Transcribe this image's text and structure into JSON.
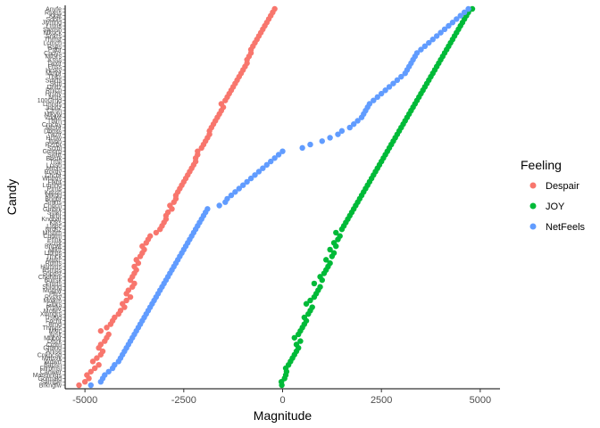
{
  "chart_data": {
    "type": "scatter",
    "xlabel": "Magnitude",
    "ylabel": "Candy",
    "xlim": [
      -5500,
      5500
    ],
    "x_ticks": [
      -5000,
      -2500,
      0,
      2500,
      5000
    ],
    "x_tick_labels": [
      "-5000",
      "-2500",
      "0",
      "2500",
      "5000"
    ],
    "grid": false,
    "legend_position": "right",
    "legend_title": "Feeling",
    "categories": [
      "Brkngfw",
      "Sample",
      "Gofmaid",
      "Maomnlgs",
      "Canwer",
      "Fiirpmsl",
      "Bapsn",
      "Wdwrf",
      "Mntsvk",
      "Cnkpcsd",
      "Anise",
      "Gltbnd",
      "Crptn",
      "Dlsrk",
      "Mrlbor",
      "Jlyslt",
      "Mlvc",
      "Thmps",
      "Brnd",
      "Fnchr",
      "Trshld",
      "Xmngrs",
      "Mcwrs",
      "Prplw",
      "Glbrs",
      "Mnlkm",
      "Rvsxy",
      "Pltrs",
      "Mngrw",
      "Shldng",
      "Frmts",
      "Bulrsk",
      "Chdhms",
      "Snppst",
      "Rsmps",
      "Hsmms",
      "Rdhts",
      "Mtrkc",
      "Trnck",
      "Lfdrps",
      "Mlktt",
      "Bncwt",
      "Scrpt",
      "Prlnk",
      "Cndtm",
      "Mrshm",
      "Nrdsz",
      "Lldpc",
      "Ktks",
      "Kndbar",
      "Hrbr",
      "Smkr",
      "Gmbrk",
      "Cndcn",
      "Smrts",
      "Bngbr",
      "Mlkdd",
      "Kitsch",
      "Ptrns",
      "Lmnhd",
      "Flkbr",
      "Whtms",
      "Chcbr",
      "Rckdy",
      "Mrbls",
      "Lcrsh",
      "Trtsl",
      "Bbstk",
      "Swtrt",
      "Gmdrp",
      "Scrbl",
      "Rzzbr",
      "Jlybn",
      "Hchw",
      "Twzlr",
      "Dbbxs",
      "Mrsbr",
      "Crnchy",
      "Tblrn",
      "Vndwf",
      "Mlkyw",
      "Ctrsh",
      "Jnbnz",
      "Lmnds",
      "100Grnd",
      "Nrds",
      "Hrshy",
      "Rhlcp",
      "Dnttz",
      "Skttl",
      "Smrfs",
      "Tblrs",
      "Mmpr",
      "Hrsky",
      "Frtss",
      "Twxlr",
      "Ksss",
      "Mltsrs",
      "Cndys",
      "Prtbr",
      "Rsps",
      "Lcmch",
      "Thmst",
      "Snkrs",
      "Mkuck",
      "Swdsh",
      "Ltrms",
      "Jlymng",
      "Sdbls",
      "Kkat",
      "Rssss",
      "Anyfe"
    ],
    "series": [
      {
        "name": "Despair",
        "color": "#F8766D",
        "values": [
          -5150,
          -5000,
          -4900,
          -4950,
          -4850,
          -4750,
          -4650,
          -4800,
          -4700,
          -4600,
          -4550,
          -4650,
          -4600,
          -4500,
          -4450,
          -4400,
          -4600,
          -4450,
          -4350,
          -4300,
          -4250,
          -4150,
          -4100,
          -4000,
          -4050,
          -3950,
          -3850,
          -3950,
          -3900,
          -3800,
          -3750,
          -3850,
          -3800,
          -3750,
          -3700,
          -3750,
          -3650,
          -3700,
          -3600,
          -3550,
          -3500,
          -3550,
          -3450,
          -3400,
          -3350,
          -3200,
          -3100,
          -3050,
          -3000,
          -2950,
          -2950,
          -2900,
          -2800,
          -2850,
          -2750,
          -2700,
          -2700,
          -2650,
          -2600,
          -2550,
          -2500,
          -2450,
          -2400,
          -2350,
          -2300,
          -2250,
          -2200,
          -2200,
          -2150,
          -2150,
          -2050,
          -2000,
          -1950,
          -1900,
          -1850,
          -1850,
          -1800,
          -1750,
          -1700,
          -1650,
          -1600,
          -1550,
          -1500,
          -1550,
          -1450,
          -1400,
          -1350,
          -1300,
          -1250,
          -1200,
          -1150,
          -1100,
          -1050,
          -1000,
          -950,
          -900,
          -900,
          -850,
          -800,
          -800,
          -750,
          -700,
          -650,
          -600,
          -550,
          -500,
          -450,
          -400,
          -350,
          -300,
          -250,
          -200
        ]
      },
      {
        "name": "JOY",
        "color": "#00BA38",
        "values": [
          -20,
          -30,
          50,
          80,
          100,
          80,
          150,
          200,
          250,
          300,
          350,
          400,
          350,
          450,
          300,
          400,
          450,
          500,
          550,
          600,
          550,
          650,
          700,
          750,
          600,
          700,
          800,
          850,
          900,
          950,
          800,
          1000,
          950,
          1050,
          1100,
          1150,
          1200,
          1100,
          1250,
          1300,
          1200,
          1350,
          1300,
          1400,
          1450,
          1350,
          1500,
          1550,
          1600,
          1650,
          1700,
          1750,
          1800,
          1850,
          1900,
          1950,
          2000,
          2050,
          2100,
          2150,
          2200,
          2250,
          2300,
          2350,
          2400,
          2450,
          2500,
          2550,
          2600,
          2650,
          2700,
          2750,
          2800,
          2850,
          2900,
          2950,
          3000,
          3050,
          3100,
          3150,
          3200,
          3250,
          3300,
          3350,
          3400,
          3450,
          3500,
          3550,
          3600,
          3650,
          3700,
          3750,
          3800,
          3850,
          3900,
          3950,
          4000,
          4050,
          4100,
          4150,
          4200,
          4250,
          4300,
          4350,
          4400,
          4450,
          4500,
          4550,
          4600,
          4650,
          4700,
          4800
        ]
      },
      {
        "name": "NetFeels",
        "color": "#619CFF",
        "values": [
          -4850,
          -4600,
          -4550,
          -4500,
          -4400,
          -4300,
          -4250,
          -4150,
          -4100,
          -4050,
          -4000,
          -3950,
          -3900,
          -3850,
          -3800,
          -3750,
          -3700,
          -3650,
          -3600,
          -3550,
          -3500,
          -3450,
          -3400,
          -3350,
          -3300,
          -3250,
          -3200,
          -3150,
          -3100,
          -3050,
          -3000,
          -2950,
          -2900,
          -2850,
          -2800,
          -2750,
          -2700,
          -2650,
          -2600,
          -2550,
          -2500,
          -2450,
          -2400,
          -2350,
          -2300,
          -2250,
          -2200,
          -2150,
          -2100,
          -2050,
          -2000,
          -1950,
          -1900,
          -1600,
          -1450,
          -1400,
          -1300,
          -1200,
          -1100,
          -1000,
          -900,
          -800,
          -700,
          -600,
          -500,
          -400,
          -300,
          -200,
          -100,
          0,
          500,
          700,
          1000,
          1200,
          1400,
          1500,
          1700,
          1800,
          1900,
          2000,
          2050,
          2100,
          2150,
          2200,
          2300,
          2400,
          2500,
          2600,
          2700,
          2800,
          2900,
          3000,
          3100,
          3150,
          3200,
          3250,
          3300,
          3350,
          3400,
          3500,
          3600,
          3700,
          3800,
          3900,
          4000,
          4100,
          4200,
          4300,
          4400,
          4500,
          4600,
          4700
        ]
      }
    ]
  }
}
